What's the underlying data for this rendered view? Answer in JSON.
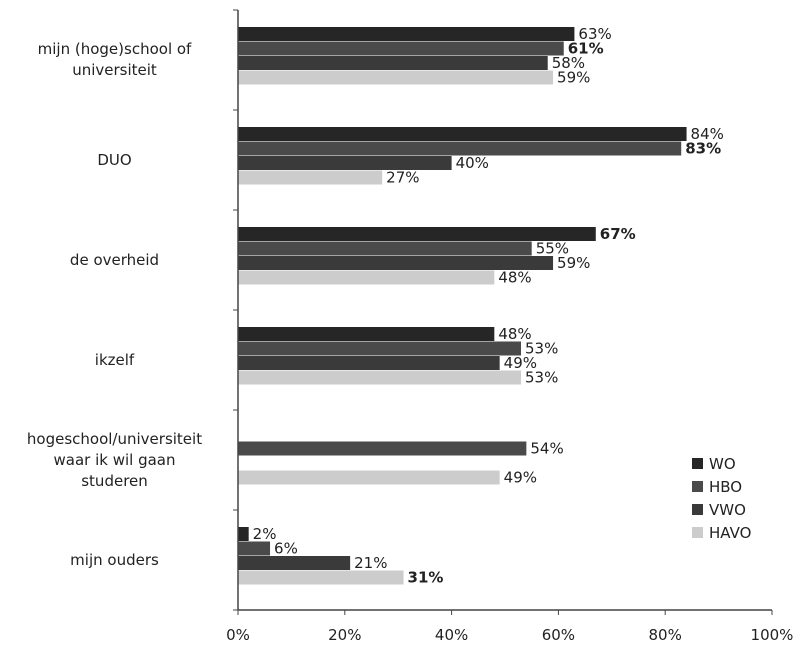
{
  "chart_data": {
    "type": "bar",
    "orientation": "horizontal",
    "categories": [
      "mijn (hoge)school of universiteit",
      "DUO",
      "de overheid",
      "ikzelf",
      "hogeschool/universiteit waar ik wil gaan studeren",
      "mijn ouders"
    ],
    "category_lines": [
      [
        "mijn (hoge)school of",
        "universiteit"
      ],
      [
        "DUO"
      ],
      [
        "de overheid"
      ],
      [
        "ikzelf"
      ],
      [
        "hogeschool/universiteit",
        "waar ik wil gaan",
        "studeren"
      ],
      [
        "mijn ouders"
      ]
    ],
    "series": [
      {
        "name": "WO",
        "color": "#262626",
        "values": [
          63,
          84,
          67,
          48,
          null,
          2
        ]
      },
      {
        "name": "HBO",
        "color": "#4a4a4a",
        "values": [
          61,
          83,
          55,
          53,
          54,
          6
        ]
      },
      {
        "name": "VWO",
        "color": "#3a3a3a",
        "values": [
          58,
          40,
          59,
          49,
          null,
          21
        ]
      },
      {
        "name": "HAVO",
        "color": "#cccccc",
        "values": [
          59,
          27,
          48,
          53,
          49,
          31
        ]
      }
    ],
    "xlim": [
      0,
      100
    ],
    "x_ticks": [
      "0%",
      "20%",
      "40%",
      "60%",
      "80%",
      "100%"
    ],
    "value_suffix": "%",
    "bold_labels": [
      [
        0,
        1
      ],
      [
        1,
        1
      ],
      [
        2,
        0
      ],
      [
        5,
        3
      ]
    ],
    "legend_position": "right",
    "grid": false
  }
}
